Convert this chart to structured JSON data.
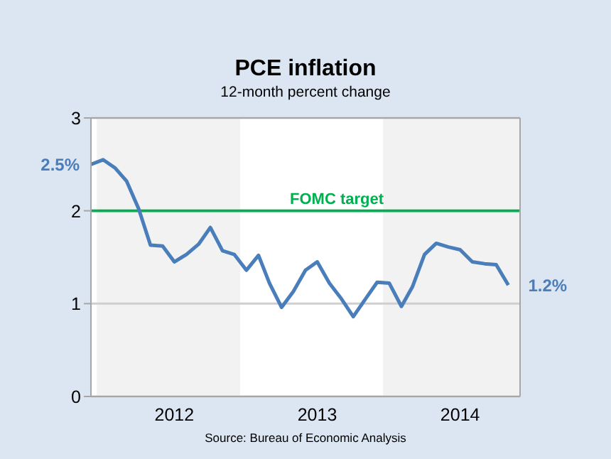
{
  "chart_data": {
    "type": "line",
    "title": "PCE inflation",
    "subtitle": "12-month percent change",
    "x": [
      "2011-12",
      "2012-01",
      "2012-02",
      "2012-03",
      "2012-04",
      "2012-05",
      "2012-06",
      "2012-07",
      "2012-08",
      "2012-09",
      "2012-10",
      "2012-11",
      "2012-12",
      "2013-01",
      "2013-02",
      "2013-03",
      "2013-04",
      "2013-05",
      "2013-06",
      "2013-07",
      "2013-08",
      "2013-09",
      "2013-10",
      "2013-11",
      "2013-12",
      "2014-01",
      "2014-02",
      "2014-03",
      "2014-04",
      "2014-05",
      "2014-06",
      "2014-07",
      "2014-08",
      "2014-09",
      "2014-10",
      "2014-11"
    ],
    "series": [
      {
        "color": "#4a7ebb",
        "values": [
          2.5,
          2.55,
          2.46,
          2.32,
          2.02,
          1.63,
          1.62,
          1.45,
          1.53,
          1.64,
          1.82,
          1.57,
          1.53,
          1.36,
          1.52,
          1.22,
          0.96,
          1.13,
          1.36,
          1.45,
          1.22,
          1.05,
          0.86,
          1.05,
          1.23,
          1.22,
          0.97,
          1.18,
          1.53,
          1.65,
          1.61,
          1.58,
          1.45,
          1.43,
          1.42,
          1.2
        ]
      }
    ],
    "xlim": [
      "2011-12",
      "2014-12"
    ],
    "xticks": [
      {
        "value": "2012-07",
        "label": "2012"
      },
      {
        "value": "2013-07",
        "label": "2013"
      },
      {
        "value": "2014-07",
        "label": "2014"
      }
    ],
    "ylim": [
      0,
      3
    ],
    "yticks": [
      0,
      1,
      2,
      3
    ],
    "grid": "y",
    "marker": "none",
    "line_style": "solid",
    "ref_lines": [
      {
        "axis": "y",
        "value": 2,
        "label": "FOMC target",
        "color": "#00b050"
      }
    ],
    "bands": [
      {
        "axis": "x",
        "from": "2011-12-16",
        "to": "2012-12-16",
        "color": "#f2f2f2"
      },
      {
        "axis": "x",
        "from": "2013-12-16",
        "to": "2014-12",
        "color": "#f2f2f2"
      }
    ],
    "annotations": [
      {
        "text": "2.5%",
        "x": "2011-12",
        "y": 2.5
      },
      {
        "text": "1.2%",
        "x": "2014-11",
        "y": 1.2
      },
      "Source: Bureau of Economic Analysis"
    ]
  }
}
